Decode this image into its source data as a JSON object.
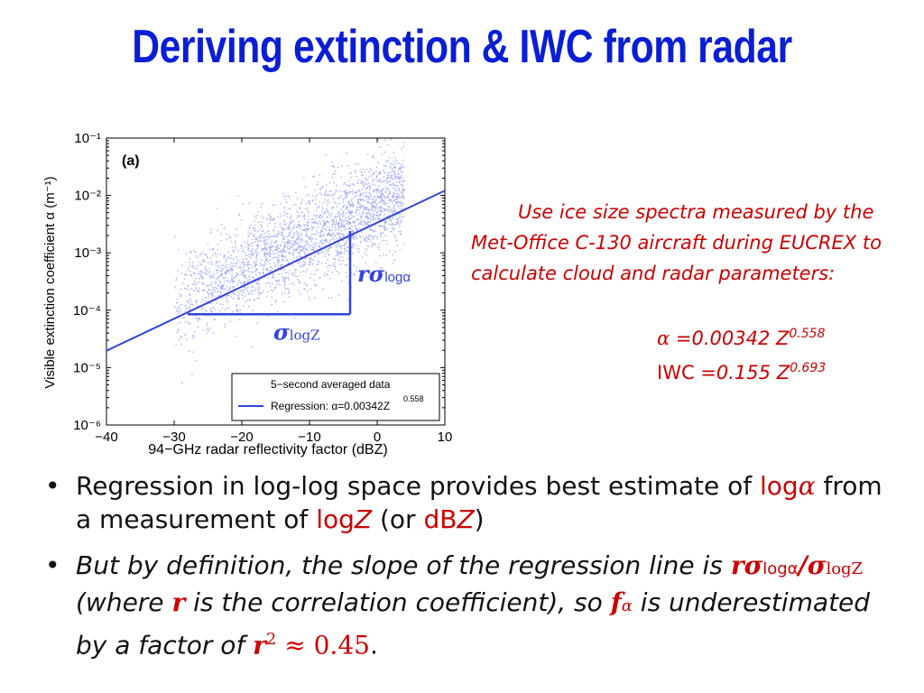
{
  "title": "Deriving extinction & IWC from radar",
  "chart_data": {
    "type": "scatter",
    "panel_label": "(a)",
    "xlabel": "94−GHz radar reflectivity factor (dBZ)",
    "ylabel": "Visible extinction coefficient α (m⁻¹)",
    "xlim": [
      -40,
      10
    ],
    "ylim": [
      1e-06,
      0.1
    ],
    "yscale": "log",
    "x_ticks": [
      "−40",
      "−30",
      "−20",
      "−10",
      "0",
      "10"
    ],
    "y_ticks": [
      "10⁻⁶",
      "10⁻⁵",
      "10⁻⁴",
      "10⁻³",
      "10⁻²",
      "10⁻¹"
    ],
    "series": [
      {
        "name": "5−second averaged data",
        "type": "scatter",
        "color": "#9aa0f2"
      },
      {
        "name": "Regression: α=0.00342Z^0.558",
        "type": "line",
        "color": "#3344dd",
        "x": [
          -40,
          10
        ],
        "y": [
          1.97e-05,
          0.01214
        ]
      }
    ],
    "legend": {
      "placement": "bottom-right",
      "entries": [
        "5−second averaged data",
        "Regression: α=0.00342Z"
      ],
      "exponent": "0.558"
    },
    "annotations": {
      "vertical": {
        "label_r": "r",
        "label_sigma": "σ",
        "sub": "logα",
        "x": -4,
        "y_from": 8.5e-05,
        "y_to": 0.0024
      },
      "horizontal": {
        "label_sigma": "σ",
        "sub": "logZ",
        "y": 8.5e-05,
        "x_from": -28,
        "x_to": -4
      }
    }
  },
  "note": {
    "text": "Use ice size spectra measured by the Met-Office C-130 aircraft during EUCREX to calculate cloud and radar parameters:",
    "eq1": {
      "lhs": "α",
      "rhs": " =0.00342 Z",
      "exp": "0.558"
    },
    "eq2": {
      "lhs": "IWC",
      "rhs": " =0.155 Z",
      "exp": "0.693"
    }
  },
  "bullets": {
    "b1": {
      "p1": "Regression in log-log space provides best estimate of ",
      "log_a": "log",
      "alpha": "α",
      "p2": " from a measurement of ",
      "logz": "log",
      "z": "Z",
      "p3": " (or ",
      "dbz": "dB",
      "z2": "Z",
      "p4": ")"
    },
    "b2": {
      "p1": "But by definition, the slope of the regression line is ",
      "r": "r",
      "sigma": "σ",
      "sub1": "logα",
      "slash": "/",
      "sigma2": "σ",
      "sub2": "logZ",
      "p2": " (where ",
      "r2": "r",
      "p3": " is the correlation coefficient), so ",
      "f": "f",
      "fsub": "α",
      "p4": " is underestimated by a factor of ",
      "rr": "r",
      "sq": "2",
      "approx": " ≈ 0.45",
      "p5": "."
    }
  }
}
